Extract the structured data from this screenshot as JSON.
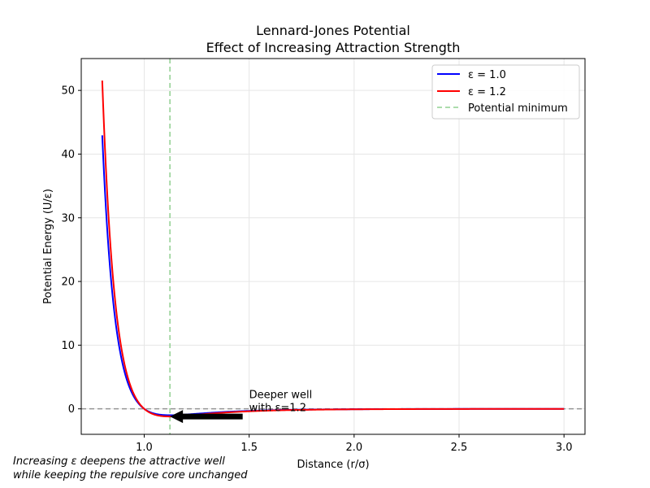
{
  "chart_data": {
    "type": "line",
    "title_line1": "Lennard-Jones Potential",
    "title_line2": "Effect of Increasing Attraction Strength",
    "xlabel": "Distance (r/σ)",
    "ylabel": "Potential Energy (U/ε)",
    "xlim": [
      0.7,
      3.1
    ],
    "ylim": [
      -4,
      55
    ],
    "xticks": [
      1.0,
      1.5,
      2.0,
      2.5,
      3.0
    ],
    "xtick_labels": [
      "1.0",
      "1.5",
      "2.0",
      "2.5",
      "3.0"
    ],
    "yticks": [
      0,
      10,
      20,
      30,
      40,
      50
    ],
    "ytick_labels": [
      "0",
      "10",
      "20",
      "30",
      "40",
      "50"
    ],
    "grid": true,
    "legend_position": "top-right",
    "x_range": [
      0.8,
      3.0
    ],
    "series": [
      {
        "name": "ε = 1.0",
        "epsilon": 1.0,
        "color": "#0000ff"
      },
      {
        "name": "ε = 1.2",
        "epsilon": 1.2,
        "color": "#ff0000"
      }
    ],
    "reference_lines": [
      {
        "name": "Potential minimum",
        "orientation": "vertical",
        "x": 1.1225,
        "color": "#90d090",
        "style": "dashed"
      },
      {
        "orientation": "horizontal",
        "y": 0,
        "color": "#808080",
        "style": "dashed"
      }
    ],
    "annotation": {
      "text_line1": "Deeper well",
      "text_line2": "with ε=1.2",
      "text_x": 1.5,
      "text_y": 0.3,
      "arrow_to_x": 1.1225,
      "arrow_to_y": -1.2
    },
    "footnote_line1": "Increasing ε deepens the attractive well",
    "footnote_line2": "while keeping the repulsive core unchanged"
  }
}
